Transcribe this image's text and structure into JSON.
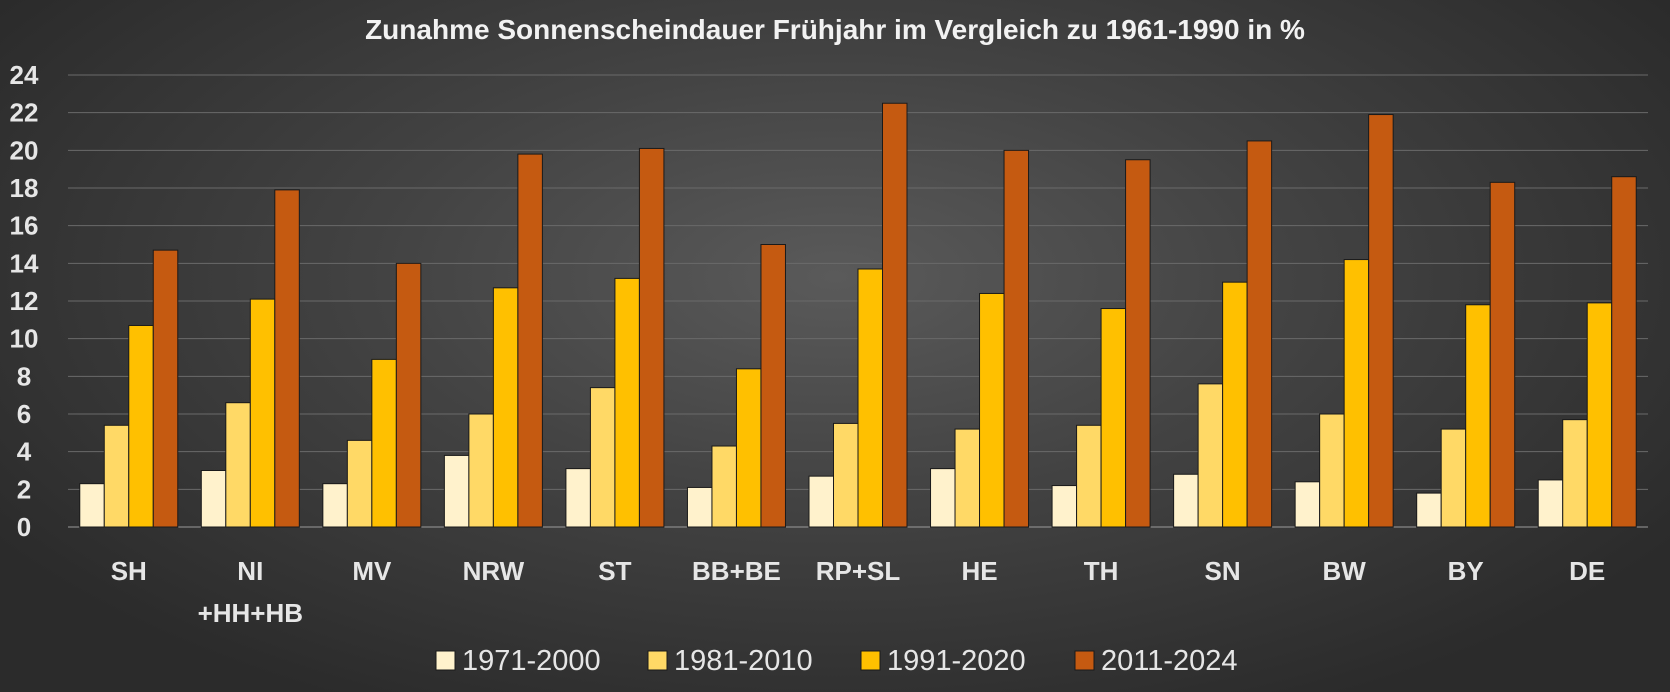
{
  "chart_data": {
    "type": "bar",
    "title": "Zunahme Sonnenscheindauer Frühjahr im Vergleich zu 1961-1990 in %",
    "xlabel": "",
    "ylabel": "",
    "ylim": [
      0,
      24
    ],
    "yticks": [
      0,
      2,
      4,
      6,
      8,
      10,
      12,
      14,
      16,
      18,
      20,
      22,
      24
    ],
    "grid": true,
    "legend_position": "bottom",
    "categories": [
      [
        "SH"
      ],
      [
        "NI",
        "+HH+HB"
      ],
      [
        "MV"
      ],
      [
        "NRW"
      ],
      [
        "ST"
      ],
      [
        "BB+BE"
      ],
      [
        "RP+SL"
      ],
      [
        "HE"
      ],
      [
        "TH"
      ],
      [
        "SN"
      ],
      [
        "BW"
      ],
      [
        "BY"
      ],
      [
        "DE"
      ]
    ],
    "series": [
      {
        "name": "1971-2000",
        "color": "#fff2cc",
        "values": [
          2.3,
          3.0,
          2.3,
          3.8,
          3.1,
          2.1,
          2.7,
          3.1,
          2.2,
          2.8,
          2.4,
          1.8,
          2.5
        ]
      },
      {
        "name": "1981-2010",
        "color": "#ffd966",
        "values": [
          5.4,
          6.6,
          4.6,
          6.0,
          7.4,
          4.3,
          5.5,
          5.2,
          5.4,
          7.6,
          6.0,
          5.2,
          5.7
        ]
      },
      {
        "name": "1991-2020",
        "color": "#ffc000",
        "values": [
          10.7,
          12.1,
          8.9,
          12.7,
          13.2,
          8.4,
          13.7,
          12.4,
          11.6,
          13.0,
          14.2,
          11.8,
          11.9
        ]
      },
      {
        "name": "2011-2024",
        "color": "#c55a11",
        "values": [
          14.7,
          17.9,
          14.0,
          19.8,
          20.1,
          15.0,
          22.5,
          20.0,
          19.5,
          20.5,
          21.9,
          18.3,
          18.6
        ]
      }
    ]
  }
}
